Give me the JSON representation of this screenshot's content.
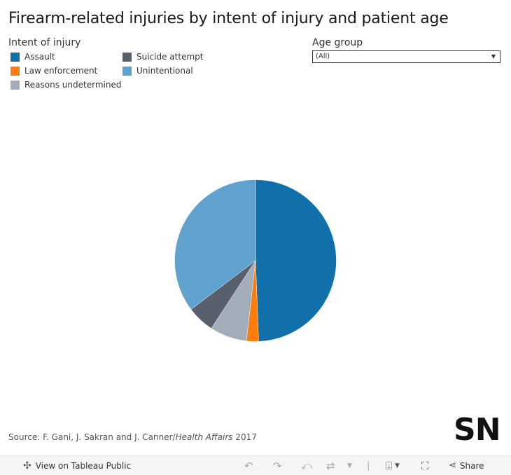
{
  "title": "Firearm-related injuries by intent of injury and patient age",
  "legend": {
    "title": "Intent of injury",
    "items": [
      {
        "label": "Assault",
        "color": "#1170aa"
      },
      {
        "label": "Law enforcement",
        "color": "#fc7d0b"
      },
      {
        "label": "Reasons undetermined",
        "color": "#a3acb9"
      },
      {
        "label": "Suicide attempt",
        "color": "#57606c"
      },
      {
        "label": "Unintentional",
        "color": "#5fa2ce"
      }
    ]
  },
  "filter": {
    "title": "Age group",
    "selected": "(All)",
    "arrow": "▼"
  },
  "source": {
    "prefix": "Source: F. Gani, J. Sakran and J. Canner/",
    "journal": "Health Affairs",
    "year": " 2017"
  },
  "logo": "SN",
  "toolbar": {
    "view_label": "View on Tableau Public",
    "share_label": "Share"
  },
  "chart_data": {
    "type": "pie",
    "title": "Firearm-related injuries by intent of injury and patient age",
    "legend_title": "Intent of injury",
    "legend_position": "top-left",
    "filter": {
      "Age group": "(All)"
    },
    "categories": [
      "Assault",
      "Law enforcement",
      "Reasons undetermined",
      "Suicide attempt",
      "Unintentional"
    ],
    "values": [
      49.4,
      2.4,
      7.4,
      5.5,
      35.3
    ],
    "unit": "percent of injuries (estimated from slice angles)",
    "colors": [
      "#1170aa",
      "#fc7d0b",
      "#a3acb9",
      "#57606c",
      "#5fa2ce"
    ],
    "start_angle": "12 o'clock, clockwise"
  }
}
